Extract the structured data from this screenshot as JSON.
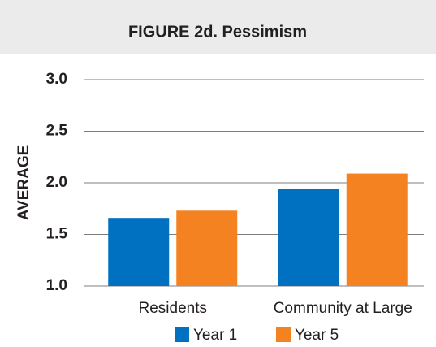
{
  "chart_data": {
    "type": "bar",
    "title": "FIGURE 2d. Pessimism",
    "ylabel": "AVERAGE",
    "categories": [
      "Residents",
      "Community at Large"
    ],
    "series": [
      {
        "name": "Year 1",
        "color": "#0070c0",
        "values": [
          1.66,
          1.94
        ]
      },
      {
        "name": "Year 5",
        "color": "#f58220",
        "values": [
          1.73,
          2.09
        ]
      }
    ],
    "ylim": [
      1,
      3
    ],
    "yticks": [
      {
        "value": 1,
        "label": "1.0"
      },
      1.5,
      {
        "value": 2,
        "label": "2.0"
      },
      2.5,
      {
        "value": 3,
        "label": "3.0"
      }
    ],
    "grid": true,
    "legend": "bottom"
  }
}
